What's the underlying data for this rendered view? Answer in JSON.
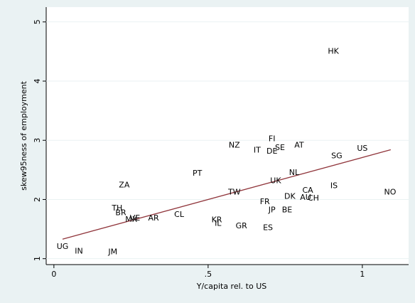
{
  "chart_data": {
    "type": "scatter",
    "xlabel": "Y/capita rel. to US",
    "ylabel": "skew95ness of employment",
    "labels": [
      "HK",
      "FI",
      "NZ",
      "IT",
      "DE",
      "SE",
      "AT",
      "US",
      "SG",
      "PT",
      "ZA",
      "NL",
      "UK",
      "CA",
      "IS",
      "NO",
      "TW",
      "DK",
      "AU",
      "CH",
      "FR",
      "JP",
      "BE",
      "TH",
      "BR",
      "MX",
      "VE",
      "AR",
      "CL",
      "KR",
      "IL",
      "GR",
      "ES",
      "UG",
      "IN",
      "JM"
    ],
    "x": [
      0.906,
      0.707,
      0.585,
      0.659,
      0.707,
      0.733,
      0.795,
      1.0,
      0.917,
      0.465,
      0.228,
      0.779,
      0.719,
      0.823,
      0.908,
      1.09,
      0.585,
      0.765,
      0.816,
      0.841,
      0.684,
      0.707,
      0.756,
      0.205,
      0.217,
      0.251,
      0.263,
      0.323,
      0.406,
      0.528,
      0.532,
      0.608,
      0.694,
      0.028,
      0.081,
      0.191
    ],
    "values": [
      4.5,
      3.02,
      2.91,
      2.83,
      2.81,
      2.87,
      2.91,
      2.86,
      2.73,
      2.44,
      2.24,
      2.45,
      2.31,
      2.15,
      2.23,
      2.12,
      2.12,
      2.05,
      2.03,
      2.02,
      1.96,
      1.82,
      1.82,
      1.85,
      1.77,
      1.66,
      1.68,
      1.68,
      1.74,
      1.65,
      1.59,
      1.55,
      1.52,
      1.2,
      1.12,
      1.11
    ],
    "color": "#1a476f",
    "fit_line": {
      "x": [
        0.028,
        1.092
      ],
      "values": [
        1.33,
        2.84
      ],
      "color": "#90353b"
    },
    "xlim": [
      -0.025,
      1.15
    ],
    "ylim": [
      0.9,
      5.25
    ],
    "xticks": [
      0,
      {
        "value": 0.5,
        "label": ".5"
      },
      1
    ],
    "yticks": [
      1,
      2,
      3,
      4,
      5
    ],
    "grid": true
  }
}
